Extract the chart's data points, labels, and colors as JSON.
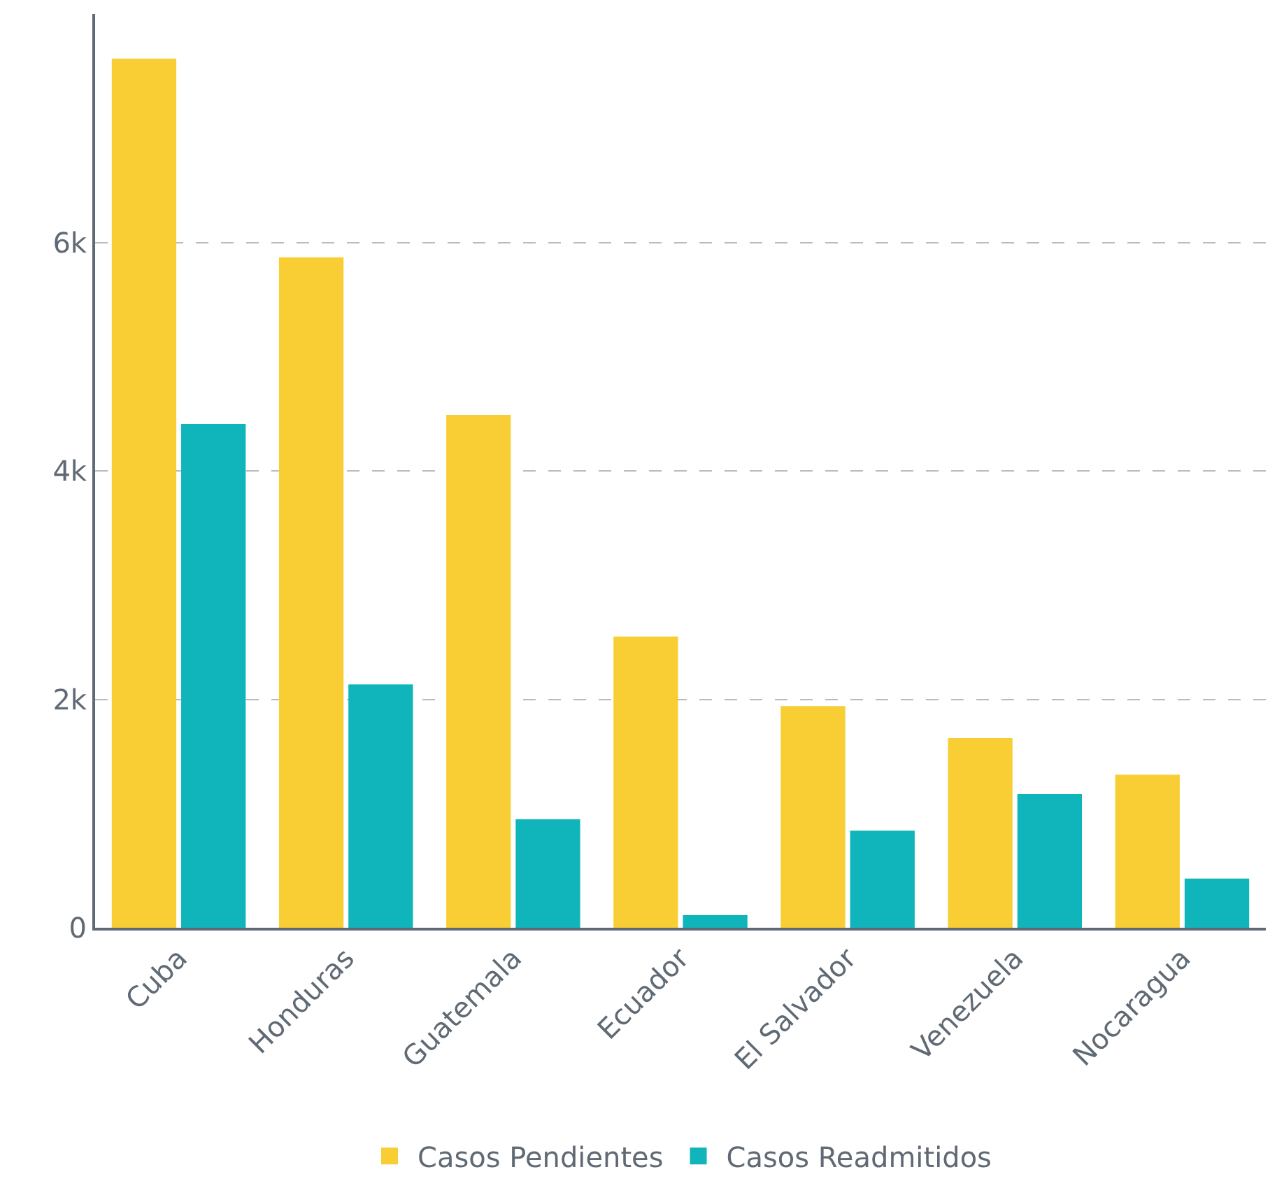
{
  "chart_data": {
    "type": "bar",
    "categories": [
      "Cuba",
      "Honduras",
      "Guatemala",
      "Ecuador",
      "El Salvador",
      "Venezuela",
      "Nocaragua"
    ],
    "series": [
      {
        "name": "Casos Pendientes",
        "color": "#f8ce34",
        "values": [
          7610,
          5870,
          4490,
          2550,
          1940,
          1660,
          1340
        ]
      },
      {
        "name": "Casos Readmitidos",
        "color": "#10b5bc",
        "values": [
          4410,
          2130,
          950,
          110,
          850,
          1170,
          430
        ]
      }
    ],
    "ylim": [
      0,
      8000
    ],
    "yticks": [
      0,
      {
        "value": 2000,
        "label": "2k"
      },
      {
        "value": 4000,
        "label": "4k"
      },
      {
        "value": 6000,
        "label": "6k"
      }
    ],
    "grid": "y",
    "legend": "bottom"
  }
}
